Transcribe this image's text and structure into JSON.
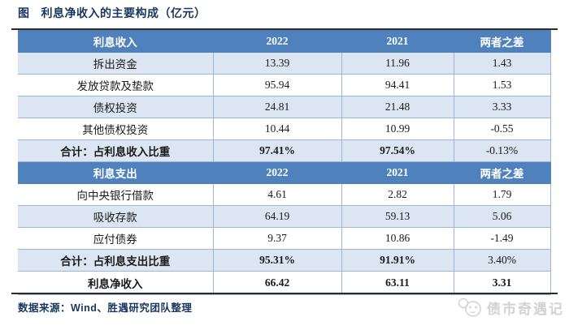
{
  "figure": {
    "label": "图",
    "title": "利息净收入的主要构成（亿元）"
  },
  "table": {
    "sections": [
      {
        "header": [
          "利息收入",
          "2022",
          "2021",
          "两者之差"
        ],
        "rows": [
          {
            "label": "拆出资金",
            "values": [
              "13.39",
              "11.96",
              "1.43"
            ],
            "shaded": true
          },
          {
            "label": "发放贷款及垫款",
            "values": [
              "95.94",
              "94.41",
              "1.53"
            ],
            "shaded": false
          },
          {
            "label": "债权投资",
            "values": [
              "24.81",
              "21.48",
              "3.33"
            ],
            "shaded": true
          },
          {
            "label": "其他债权投资",
            "values": [
              "10.44",
              "10.99",
              "-0.55"
            ],
            "shaded": false
          }
        ],
        "total": {
          "label": "合计：占利息收入比重",
          "values": [
            "97.41%",
            "97.54%",
            "-0.13%"
          ]
        }
      },
      {
        "header": [
          "利息支出",
          "2022",
          "2021",
          "两者之差"
        ],
        "rows": [
          {
            "label": "向中央银行借款",
            "values": [
              "4.61",
              "2.82",
              "1.79"
            ],
            "shaded": false
          },
          {
            "label": "吸收存款",
            "values": [
              "64.19",
              "59.13",
              "5.06"
            ],
            "shaded": true
          },
          {
            "label": "应付债券",
            "values": [
              "9.37",
              "10.86",
              "-1.49"
            ],
            "shaded": false
          }
        ],
        "total": {
          "label": "合计：占利息支出比重",
          "values": [
            "95.31%",
            "91.91%",
            "3.40%"
          ]
        }
      }
    ],
    "net_row": {
      "label": "利息净收入",
      "values": [
        "66.42",
        "63.11",
        "3.31"
      ]
    }
  },
  "footer": {
    "source": "数据来源：Wind、胜遇研究团队整理"
  },
  "watermark": {
    "text": "债市奇遇记",
    "icon": "panda-face-icon"
  },
  "colors": {
    "header_blue": "#4f81bd",
    "row_shade_blue": "#dce6f2",
    "cell_border_blue": "#9db7da",
    "title_navy": "#17375e",
    "rule_dark": "#2b2b2b",
    "watermark_gray": "#d2d2d2"
  }
}
